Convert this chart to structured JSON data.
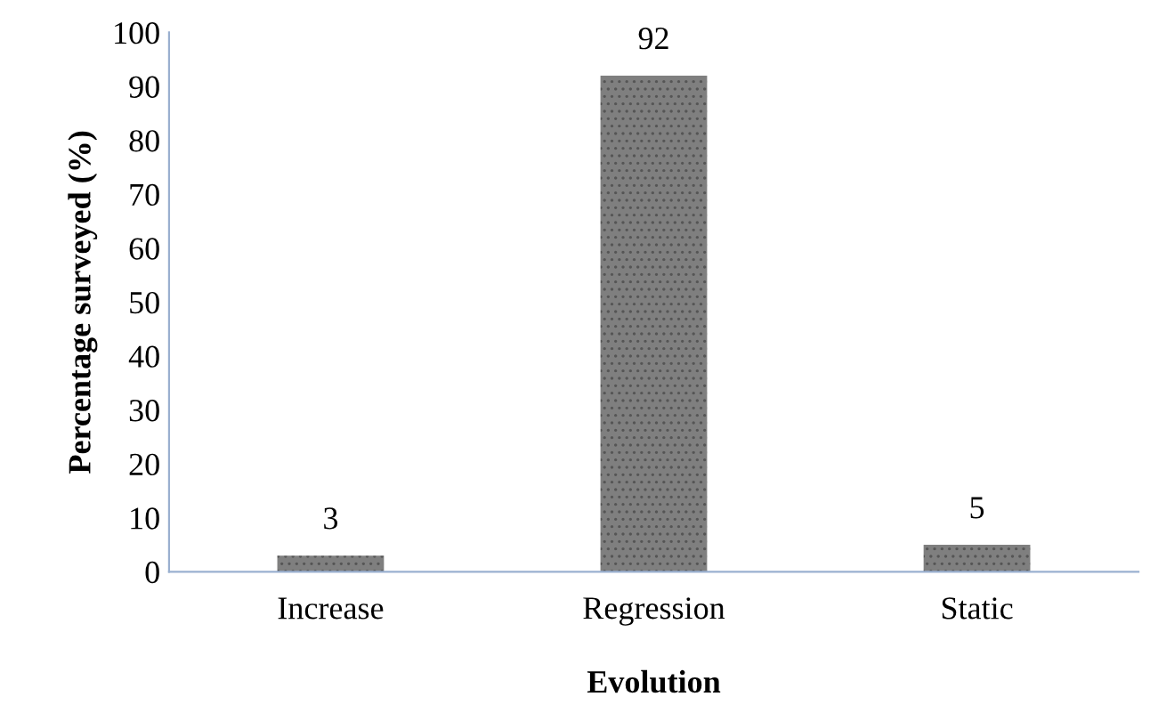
{
  "chart_data": {
    "type": "bar",
    "xlabel": "Evolution",
    "ylabel": "Percentage surveyed (%)",
    "categories": [
      "Increase",
      "Regression",
      "Static"
    ],
    "values": [
      3,
      92,
      5
    ],
    "color": "#7f7f7f",
    "ylim": [
      0,
      100
    ],
    "yticks": [
      0,
      10,
      20,
      30,
      40,
      50,
      60,
      70,
      80,
      90,
      100
    ],
    "grid": false,
    "data_labels": true
  }
}
